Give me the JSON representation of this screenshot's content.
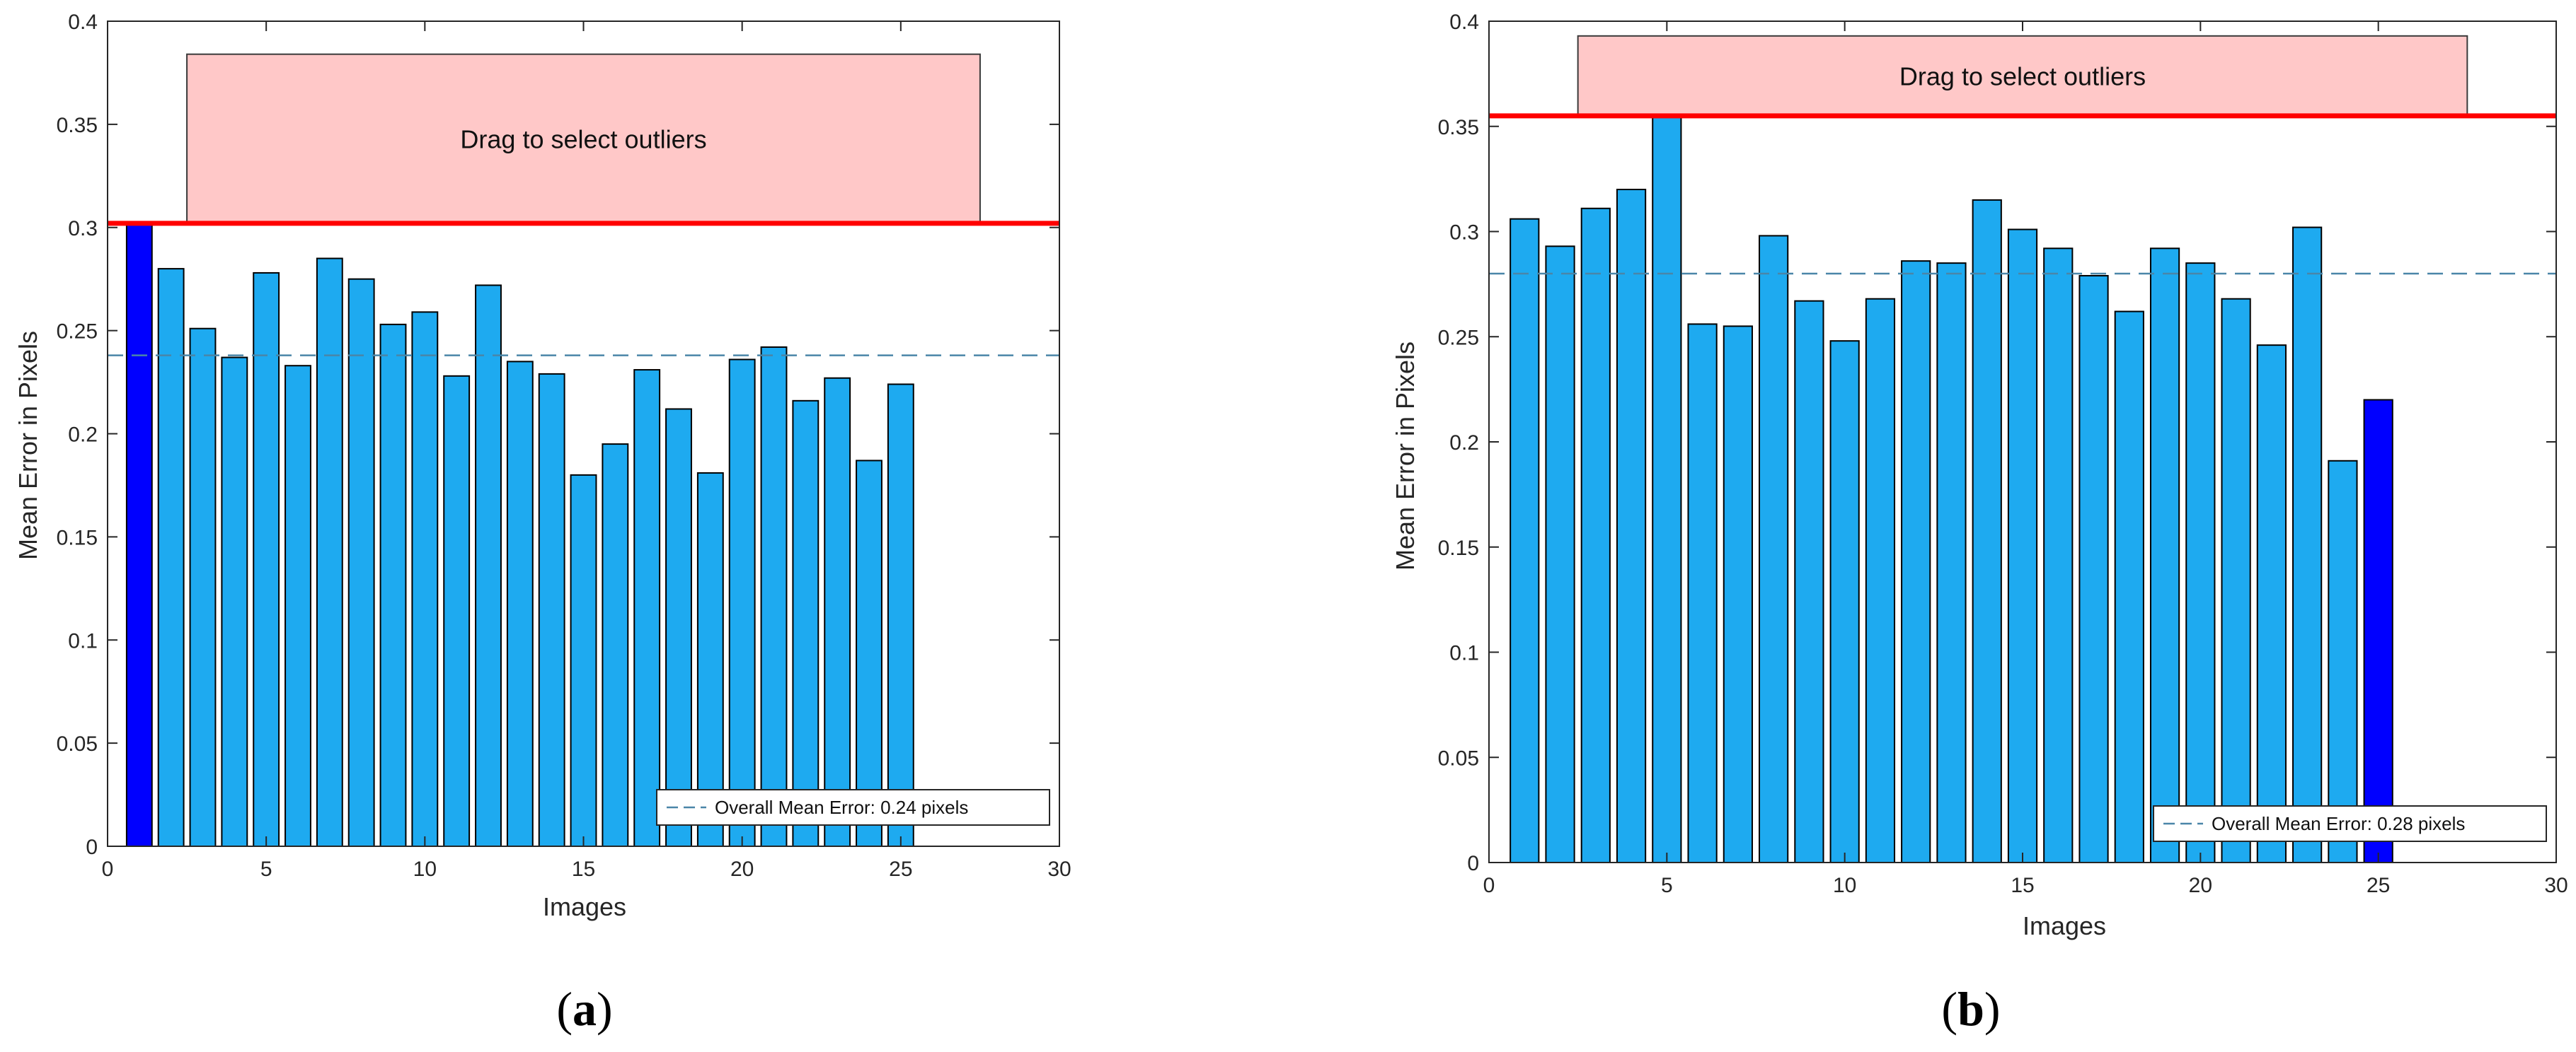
{
  "colors": {
    "bar": "#1eaaf0",
    "bar_highlight": "#0000ff",
    "bar_edge": "#000000",
    "threshold": "#ff0000",
    "mean_line": "#4a86a8",
    "outlier_box_fill": "#ffc8c8",
    "axis": "#262626"
  },
  "chart_data": [
    {
      "type": "bar",
      "panel_label": "a",
      "xlabel": "Images",
      "ylabel": "Mean Error in Pixels",
      "xlim": [
        0,
        30
      ],
      "ylim": [
        0,
        0.4
      ],
      "xticks": [
        0,
        5,
        10,
        15,
        20,
        25,
        30
      ],
      "yticks": [
        0,
        0.05,
        0.1,
        0.15,
        0.2,
        0.25,
        0.3,
        0.35,
        0.4
      ],
      "x": [
        1,
        2,
        3,
        4,
        5,
        6,
        7,
        8,
        9,
        10,
        11,
        12,
        13,
        14,
        15,
        16,
        17,
        18,
        19,
        20,
        21,
        22,
        23,
        24,
        25
      ],
      "values": [
        0.302,
        0.28,
        0.251,
        0.237,
        0.278,
        0.233,
        0.285,
        0.275,
        0.253,
        0.259,
        0.228,
        0.272,
        0.235,
        0.229,
        0.18,
        0.195,
        0.231,
        0.212,
        0.181,
        0.236,
        0.242,
        0.216,
        0.227,
        0.187,
        0.224
      ],
      "highlighted": [
        1
      ],
      "overall_mean": 0.238,
      "threshold": 0.302,
      "outlier_region": {
        "x_range": [
          2.5,
          27.5
        ],
        "y_range": [
          0.302,
          0.384
        ]
      },
      "outlier_label": "Drag to select outliers",
      "legend": "Overall Mean Error: 0.24 pixels",
      "legend_position": "bottom-right",
      "grid": false
    },
    {
      "type": "bar",
      "panel_label": "b",
      "xlabel": "Images",
      "ylabel": "Mean Error in Pixels",
      "xlim": [
        0,
        30
      ],
      "ylim": [
        0,
        0.4
      ],
      "xticks": [
        0,
        5,
        10,
        15,
        20,
        25,
        30
      ],
      "yticks": [
        0,
        0.05,
        0.1,
        0.15,
        0.2,
        0.25,
        0.3,
        0.35,
        0.4
      ],
      "x": [
        1,
        2,
        3,
        4,
        5,
        6,
        7,
        8,
        9,
        10,
        11,
        12,
        13,
        14,
        15,
        16,
        17,
        18,
        19,
        20,
        21,
        22,
        23,
        24,
        25
      ],
      "values": [
        0.306,
        0.293,
        0.311,
        0.32,
        0.355,
        0.256,
        0.255,
        0.298,
        0.267,
        0.248,
        0.268,
        0.286,
        0.285,
        0.315,
        0.301,
        0.292,
        0.279,
        0.262,
        0.292,
        0.285,
        0.268,
        0.246,
        0.302,
        0.191,
        0.22
      ],
      "highlighted": [
        25
      ],
      "overall_mean": 0.28,
      "threshold": 0.355,
      "outlier_region": {
        "x_range": [
          2.5,
          27.5
        ],
        "y_range": [
          0.355,
          0.393
        ]
      },
      "outlier_label": "Drag to select outliers",
      "legend": "Overall Mean Error: 0.28 pixels",
      "legend_position": "bottom-right",
      "grid": false
    }
  ]
}
